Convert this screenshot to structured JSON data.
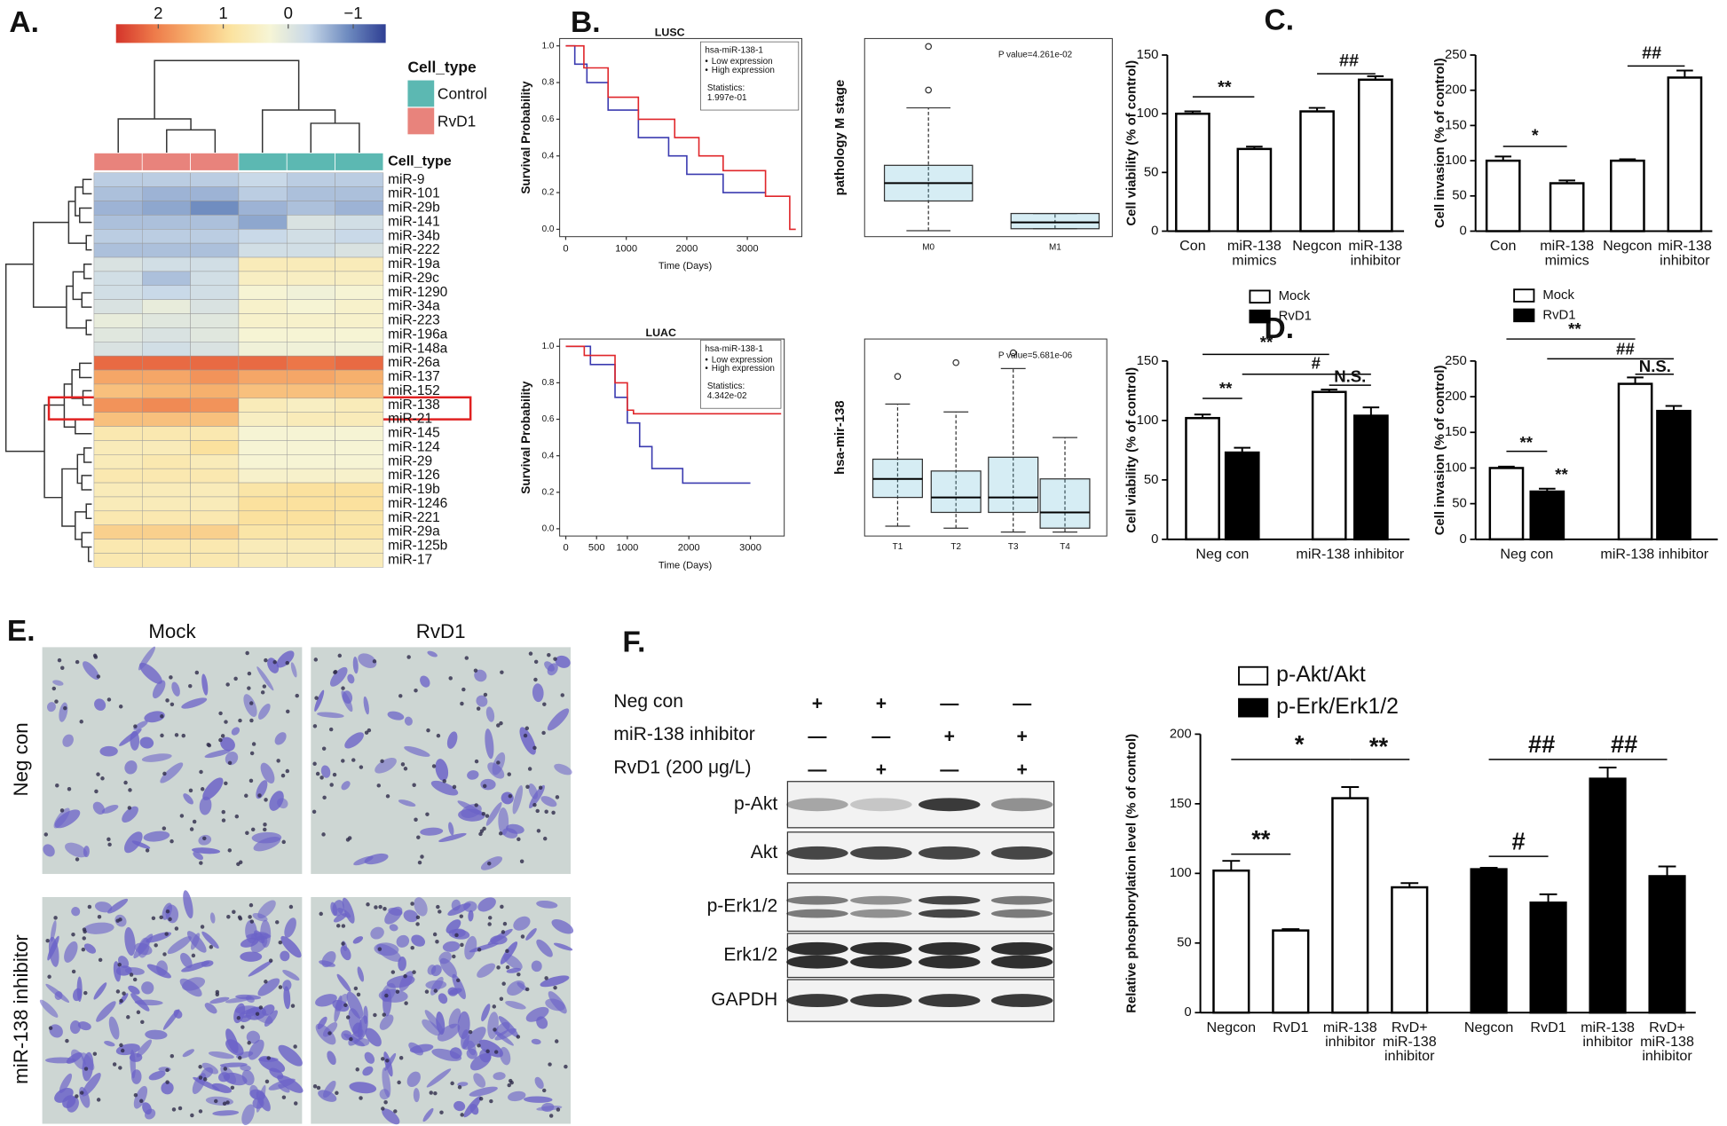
{
  "panel_labels": [
    "A.",
    "B.",
    "C.",
    "D.",
    "E.",
    "F."
  ],
  "chart_data": [
    {
      "type": "heatmap",
      "colorbar_ticks": [
        2,
        1,
        0,
        {
          "value": -1,
          "label": "−1"
        }
      ],
      "zlim": [
        -1.5,
        2.65
      ],
      "colorbar_direction": "descending",
      "colorscale": [
        "#2f3f94",
        "#6f8cc0",
        "#c8d8e8",
        "#f6f5d6",
        "#fbe3a0",
        "#f7b36f",
        "#ee7b4a",
        "#d4342b"
      ],
      "legend_title": "Cell_type",
      "legend": [
        {
          "name": "Control",
          "color": "#5cb8b2"
        },
        {
          "name": "RvD1",
          "color": "#e8837c"
        }
      ],
      "column_types": [
        "RvD1",
        "RvD1",
        "RvD1",
        "Control",
        "Control",
        "Control"
      ],
      "rows": [
        "miR-9",
        "miR-101",
        "miR-29b",
        "miR-141",
        "miR-34b",
        "miR-222",
        "miR-19a",
        "miR-29c",
        "miR-1290",
        "miR-34a",
        "miR-223",
        "miR-196a",
        "miR-148a",
        "miR-26a",
        "miR-137",
        "miR-152",
        "miR-138",
        "miR-21",
        "miR-145",
        "miR-124",
        "miR-29",
        "miR-126",
        "miR-19b",
        "miR-1246",
        "miR-221",
        "miR-29a",
        "miR-125b",
        "miR-17"
      ],
      "values": [
        [
          -0.4,
          -0.4,
          -0.4,
          -0.3,
          -0.4,
          -0.4
        ],
        [
          -0.5,
          -0.6,
          -0.6,
          -0.4,
          -0.5,
          -0.5
        ],
        [
          -0.6,
          -0.7,
          -0.9,
          -0.6,
          -0.5,
          -0.6
        ],
        [
          -0.5,
          -0.5,
          -0.5,
          -0.7,
          -0.1,
          -0.2
        ],
        [
          -0.4,
          -0.4,
          -0.4,
          -0.3,
          -0.2,
          -0.3
        ],
        [
          -0.5,
          -0.5,
          -0.5,
          -0.2,
          -0.2,
          -0.1
        ],
        [
          -0.1,
          -0.2,
          -0.2,
          0.6,
          0.6,
          0.6
        ],
        [
          -0.2,
          -0.5,
          -0.2,
          0.5,
          0.5,
          0.5
        ],
        [
          -0.2,
          -0.3,
          -0.2,
          0.3,
          0.2,
          0.3
        ],
        [
          -0.1,
          0.1,
          -0.1,
          0.4,
          0.3,
          0.4
        ],
        [
          0.1,
          0.0,
          0.0,
          0.4,
          0.4,
          0.4
        ],
        [
          0.0,
          -0.1,
          0.0,
          0.3,
          0.3,
          0.3
        ],
        [
          -0.1,
          -0.2,
          -0.1,
          0.2,
          0.2,
          0.2
        ],
        [
          2.2,
          2.2,
          2.2,
          2.2,
          2.1,
          2.2
        ],
        [
          1.6,
          1.6,
          1.8,
          1.6,
          1.6,
          1.5
        ],
        [
          1.3,
          1.4,
          1.5,
          1.3,
          1.3,
          1.3
        ],
        [
          1.8,
          1.9,
          1.8,
          0.6,
          0.5,
          0.6
        ],
        [
          1.3,
          1.3,
          1.3,
          0.5,
          0.6,
          0.6
        ],
        [
          0.7,
          0.7,
          0.7,
          0.3,
          0.3,
          0.3
        ],
        [
          0.6,
          0.6,
          0.9,
          0.3,
          0.3,
          0.3
        ],
        [
          0.6,
          0.7,
          0.6,
          0.3,
          0.3,
          0.3
        ],
        [
          0.7,
          0.7,
          0.7,
          0.4,
          0.4,
          0.4
        ],
        [
          0.6,
          0.6,
          0.6,
          0.8,
          0.9,
          0.9
        ],
        [
          0.6,
          0.6,
          0.6,
          0.9,
          0.9,
          0.9
        ],
        [
          0.7,
          0.7,
          0.7,
          0.9,
          0.9,
          0.8
        ],
        [
          1.1,
          1.1,
          1.1,
          0.8,
          0.8,
          0.8
        ],
        [
          0.7,
          0.7,
          0.7,
          0.6,
          0.6,
          0.6
        ],
        [
          0.7,
          0.7,
          0.7,
          0.6,
          0.6,
          0.6
        ]
      ]
    },
    {
      "type": "survival",
      "title": "LUSC",
      "legend_title": "hsa-miR-138-1",
      "stat_label": "Statistics:",
      "stat_value": "1.997e-01",
      "ylabel": "Survival Probability",
      "xlabel": "Time (Days)",
      "xlim": [
        -100,
        3900
      ],
      "ylim": [
        -0.04,
        1.04
      ],
      "xticks": [
        0,
        1000,
        2000,
        3000
      ],
      "yticks": [
        {
          "value": 0,
          "label": "0.0"
        },
        0.2,
        0.4,
        0.6,
        0.8,
        {
          "value": 1,
          "label": "1.0"
        }
      ],
      "series": [
        {
          "name": "Low expression",
          "color": "#3b3bb0",
          "x": [
            0,
            150,
            150,
            350,
            350,
            700,
            700,
            1200,
            1200,
            1700,
            1700,
            2000,
            2000,
            2600,
            2600,
            3300
          ],
          "values": [
            1,
            1,
            0.9,
            0.9,
            0.8,
            0.8,
            0.65,
            0.65,
            0.5,
            0.5,
            0.4,
            0.4,
            0.3,
            0.3,
            0.2,
            0.2
          ]
        },
        {
          "name": "High expression",
          "color": "#e0262a",
          "x": [
            0,
            300,
            300,
            700,
            700,
            1200,
            1200,
            1800,
            1800,
            2200,
            2200,
            2600,
            2600,
            3300,
            3300,
            3700,
            3700,
            3800
          ],
          "values": [
            1,
            1,
            0.88,
            0.88,
            0.72,
            0.72,
            0.6,
            0.6,
            0.5,
            0.5,
            0.4,
            0.4,
            0.32,
            0.32,
            0.18,
            0.18,
            0,
            0
          ]
        }
      ]
    },
    {
      "type": "box",
      "ylabel": "pathology M stage",
      "annotation": "P value=4.261e-02",
      "color": "#5bb8d4",
      "ylim": [
        0,
        10
      ],
      "categories": [
        "M0",
        "M1"
      ],
      "whislo": [
        0.3,
        0.4
      ],
      "q1": [
        1.8,
        0.4
      ],
      "median": [
        2.7,
        0.72
      ],
      "q3": [
        3.6,
        1.17
      ],
      "whishi": [
        6.5,
        1.17
      ],
      "outliers": [
        [
          7.4,
          9.6
        ],
        []
      ]
    },
    {
      "type": "survival",
      "title": "LUAC",
      "legend_title": "hsa-miR-138-1",
      "stat_label": "Statistics:",
      "stat_value": "4.342e-02",
      "ylabel": "Survival Probability",
      "xlabel": "Time (Days)",
      "xlim": [
        -100,
        3550
      ],
      "ylim": [
        -0.04,
        1.04
      ],
      "xticks": [
        0,
        500,
        1000,
        2000,
        3000
      ],
      "yticks": [
        {
          "value": 0,
          "label": "0.0"
        },
        0.2,
        0.4,
        0.6,
        0.8,
        {
          "value": 1,
          "label": "1.0"
        }
      ],
      "series": [
        {
          "name": "Low expression",
          "color": "#3b3bb0",
          "x": [
            0,
            400,
            400,
            800,
            800,
            1000,
            1000,
            1200,
            1200,
            1400,
            1400,
            1900,
            1900,
            3000
          ],
          "values": [
            1,
            1,
            0.9,
            0.9,
            0.72,
            0.72,
            0.58,
            0.58,
            0.45,
            0.45,
            0.33,
            0.33,
            0.25,
            0.25
          ]
        },
        {
          "name": "High expression",
          "color": "#e0262a",
          "x": [
            0,
            300,
            300,
            800,
            800,
            1000,
            1000,
            1100,
            1100,
            3500
          ],
          "values": [
            1,
            1,
            0.95,
            0.95,
            0.8,
            0.8,
            0.65,
            0.65,
            0.63,
            0.63
          ]
        }
      ]
    },
    {
      "type": "box",
      "ylabel": "hsa-mir-138",
      "annotation": "P value=5.681e-06",
      "color": "#5bb8d4",
      "ylim": [
        0,
        10
      ],
      "categories": [
        "T1",
        "T2",
        "T3",
        "T4"
      ],
      "whislo": [
        0.5,
        0.4,
        0.2,
        0.2
      ],
      "q1": [
        1.96,
        1.2,
        1.2,
        0.4
      ],
      "median": [
        2.9,
        1.96,
        1.96,
        1.2
      ],
      "q3": [
        3.9,
        3.3,
        4.0,
        2.9
      ],
      "whishi": [
        6.7,
        6.3,
        8.5,
        5.0
      ],
      "outliers": [
        [
          8.1
        ],
        [
          8.8
        ],
        [
          9.3
        ],
        []
      ]
    },
    {
      "type": "bar",
      "ylabel": "Cell viability (% of control)",
      "categories": [
        [
          "Con"
        ],
        [
          "miR-138",
          "mimics"
        ],
        [
          "Negcon"
        ],
        [
          "miR-138",
          "inhibitor"
        ]
      ],
      "series": [
        {
          "color": "#ffffff",
          "values": [
            100,
            70,
            102,
            129
          ],
          "errors": [
            2,
            2,
            3,
            3
          ]
        }
      ],
      "ylim": [
        0,
        150
      ],
      "yticks": [
        0,
        50,
        100,
        150
      ],
      "annotations": [
        "**",
        "##"
      ]
    },
    {
      "type": "bar",
      "ylabel": "Cell invasion (% of control)",
      "categories": [
        [
          "Con"
        ],
        [
          "miR-138",
          "mimics"
        ],
        [
          "Negcon"
        ],
        [
          "miR-138",
          "inhibitor"
        ]
      ],
      "series": [
        {
          "color": "#ffffff",
          "values": [
            100,
            68,
            100,
            218
          ],
          "errors": [
            6,
            4,
            2,
            10
          ]
        }
      ],
      "ylim": [
        0,
        250
      ],
      "yticks": [
        0,
        50,
        100,
        150,
        200,
        250
      ],
      "annotations": [
        "*",
        "##"
      ]
    },
    {
      "type": "bar",
      "ylabel": "Cell viability (% of control)",
      "categories": [
        [
          "Neg con"
        ],
        [
          "miR-138 inhibitor"
        ]
      ],
      "series": [
        {
          "name": "Mock",
          "color": "#ffffff",
          "values": [
            102,
            124
          ],
          "errors": [
            3,
            2
          ]
        },
        {
          "name": "RvD1",
          "color": "#000000",
          "values": [
            73,
            104
          ],
          "errors": [
            4,
            7
          ]
        }
      ],
      "ylim": [
        0,
        150
      ],
      "yticks": [
        0,
        50,
        100,
        150
      ],
      "annotations": [
        "**",
        "**",
        "#",
        "N.S."
      ]
    },
    {
      "type": "bar",
      "ylabel": "Cell invasion (% of control)",
      "categories": [
        [
          "Neg con"
        ],
        [
          "miR-138 inhibitor"
        ]
      ],
      "series": [
        {
          "name": "Mock",
          "color": "#ffffff",
          "values": [
            100,
            218
          ],
          "errors": [
            2,
            9
          ]
        },
        {
          "name": "RvD1",
          "color": "#000000",
          "values": [
            67,
            180
          ],
          "errors": [
            4,
            7
          ]
        }
      ],
      "ylim": [
        0,
        250
      ],
      "yticks": [
        0,
        50,
        100,
        150,
        200,
        250
      ],
      "annotations": [
        "**",
        "##",
        "N.S.",
        "**",
        "**"
      ]
    },
    {
      "type": "bar",
      "ylabel": "Relative phosphorylation level (% of control)",
      "categories": [
        [
          "Negcon"
        ],
        [
          "RvD1"
        ],
        [
          "miR-138",
          "inhibitor"
        ],
        [
          "RvD+",
          "miR-138",
          "inhibitor"
        ]
      ],
      "series": [
        {
          "name": "p-Akt/Akt",
          "color": "#ffffff",
          "values": [
            102,
            59,
            154,
            90
          ],
          "errors": [
            7,
            1,
            8,
            3
          ]
        },
        {
          "name": "p-Erk/Erk1/2",
          "color": "#000000",
          "values": [
            103,
            79,
            168,
            98
          ],
          "errors": [
            1,
            6,
            8,
            7
          ]
        }
      ],
      "ylim": [
        0,
        200
      ],
      "yticks": [
        0,
        50,
        100,
        150,
        200
      ],
      "annotations": [
        "*",
        "**",
        "**",
        "##",
        "##",
        "#"
      ]
    }
  ],
  "micrographs": {
    "columns": [
      "Mock",
      "RvD1"
    ],
    "rows": [
      "Neg con",
      "miR-138 inhibitor"
    ]
  },
  "western_blot": {
    "conditions": [
      {
        "label": "Neg con",
        "lanes": [
          "+",
          "+",
          "—",
          "—"
        ]
      },
      {
        "label": "miR-138 inhibitor",
        "lanes": [
          "—",
          "—",
          "+",
          "+"
        ]
      },
      {
        "label": "RvD1 (200 μg/L)",
        "lanes": [
          "—",
          "+",
          "—",
          "+"
        ]
      }
    ],
    "proteins": [
      "p-Akt",
      "Akt",
      "p-Erk1/2",
      "Erk1/2",
      "GAPDH"
    ]
  }
}
